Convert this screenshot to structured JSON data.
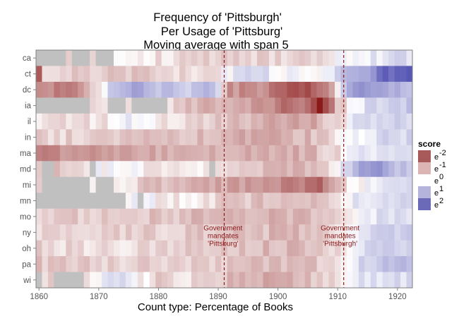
{
  "chart_data": {
    "type": "heatmap",
    "title_lines": [
      "Frequency of 'Pittsburgh'",
      "Per Usage of 'Pittsburg'",
      "Moving average with span 5"
    ],
    "xlabel": "Count type: Percentage of Books",
    "ylabel": "",
    "xlim": [
      1859.5,
      1922.5
    ],
    "x_ticks": [
      1860,
      1870,
      1880,
      1890,
      1900,
      1910,
      1920
    ],
    "x_tick_labels": [
      "1860",
      "1870",
      "1880",
      "1890",
      "1900",
      "1910",
      "1920"
    ],
    "rows": [
      "ca",
      "ct",
      "dc",
      "ia",
      "il",
      "in",
      "ma",
      "md",
      "mi",
      "mn",
      "mo",
      "ny",
      "oh",
      "pa",
      "wi"
    ],
    "years": [
      1860,
      1922
    ],
    "score_encoding": "natural log of ratio; -2 = dark red, 0 = white, 2 = dark blue; null = grey (no data)",
    "anchors": {
      "ca": [
        [
          1860,
          null
        ],
        [
          1864,
          null
        ],
        [
          1865,
          -0.3
        ],
        [
          1866,
          null
        ],
        [
          1869,
          -0.3
        ],
        [
          1870,
          null
        ],
        [
          1873,
          -0.1
        ],
        [
          1880,
          -0.2
        ],
        [
          1890,
          -0.3
        ],
        [
          1900,
          -0.3
        ],
        [
          1905,
          -0.4
        ],
        [
          1910,
          0.1
        ],
        [
          1915,
          0.2
        ],
        [
          1922,
          0.3
        ]
      ],
      "ct": [
        [
          1860,
          -1.3
        ],
        [
          1861,
          -0.3
        ],
        [
          1870,
          -0.4
        ],
        [
          1880,
          -0.3
        ],
        [
          1890,
          -0.1
        ],
        [
          1893,
          0.2
        ],
        [
          1896,
          0.4
        ],
        [
          1900,
          0.1
        ],
        [
          1905,
          -0.1
        ],
        [
          1910,
          0.3
        ],
        [
          1912,
          0.7
        ],
        [
          1915,
          1.0
        ],
        [
          1918,
          1.6
        ],
        [
          1922,
          1.7
        ]
      ],
      "dc": [
        [
          1860,
          -0.8
        ],
        [
          1865,
          -1.1
        ],
        [
          1868,
          -0.6
        ],
        [
          1870,
          -0.2
        ],
        [
          1872,
          0.5
        ],
        [
          1875,
          0.9
        ],
        [
          1880,
          0.6
        ],
        [
          1885,
          0.5
        ],
        [
          1888,
          0.8
        ],
        [
          1890,
          0.3
        ],
        [
          1892,
          -0.8
        ],
        [
          1895,
          -0.9
        ],
        [
          1898,
          -0.8
        ],
        [
          1900,
          -1.3
        ],
        [
          1904,
          -1.5
        ],
        [
          1908,
          -1.0
        ],
        [
          1910,
          -0.2
        ],
        [
          1912,
          0.9
        ],
        [
          1915,
          1.1
        ],
        [
          1918,
          0.8
        ],
        [
          1922,
          0.6
        ]
      ],
      "ia": [
        [
          1860,
          null
        ],
        [
          1865,
          null
        ],
        [
          1869,
          -0.2
        ],
        [
          1872,
          null
        ],
        [
          1874,
          null
        ],
        [
          1875,
          -0.3
        ],
        [
          1876,
          null
        ],
        [
          1880,
          null
        ],
        [
          1882,
          -0.3
        ],
        [
          1888,
          -0.6
        ],
        [
          1890,
          -0.3
        ],
        [
          1895,
          -0.7
        ],
        [
          1899,
          -0.8
        ],
        [
          1901,
          -1.2
        ],
        [
          1904,
          -1.1
        ],
        [
          1906,
          -1.6
        ],
        [
          1907,
          -2.0
        ],
        [
          1908,
          -1.4
        ],
        [
          1910,
          -0.5
        ],
        [
          1913,
          0.1
        ],
        [
          1916,
          0.4
        ],
        [
          1922,
          0.5
        ]
      ],
      "il": [
        [
          1860,
          -0.2
        ],
        [
          1870,
          -0.2
        ],
        [
          1875,
          0.1
        ],
        [
          1880,
          -0.2
        ],
        [
          1890,
          -0.4
        ],
        [
          1895,
          -0.5
        ],
        [
          1900,
          -0.7
        ],
        [
          1905,
          -0.7
        ],
        [
          1910,
          -0.3
        ],
        [
          1913,
          0.2
        ],
        [
          1918,
          0.4
        ],
        [
          1922,
          0.4
        ]
      ],
      "in": [
        [
          1860,
          -0.3
        ],
        [
          1870,
          -0.3
        ],
        [
          1880,
          -0.4
        ],
        [
          1890,
          -0.5
        ],
        [
          1895,
          -0.6
        ],
        [
          1900,
          -0.6
        ],
        [
          1905,
          -0.5
        ],
        [
          1910,
          -0.2
        ],
        [
          1913,
          0.1
        ],
        [
          1918,
          0.3
        ],
        [
          1922,
          0.3
        ]
      ],
      "ma": [
        [
          1860,
          -0.9
        ],
        [
          1870,
          -0.8
        ],
        [
          1875,
          -0.7
        ],
        [
          1880,
          -0.6
        ],
        [
          1890,
          -0.5
        ],
        [
          1900,
          -0.6
        ],
        [
          1905,
          -0.6
        ],
        [
          1910,
          -0.2
        ],
        [
          1913,
          0.1
        ],
        [
          1918,
          0.3
        ],
        [
          1922,
          0.2
        ]
      ],
      "md": [
        [
          1860,
          -0.5
        ],
        [
          1861,
          null
        ],
        [
          1863,
          -0.5
        ],
        [
          1866,
          -0.3
        ],
        [
          1869,
          null
        ],
        [
          1870,
          0.0
        ],
        [
          1875,
          0.0
        ],
        [
          1880,
          -0.2
        ],
        [
          1885,
          -0.1
        ],
        [
          1889,
          null
        ],
        [
          1890,
          -0.2
        ],
        [
          1895,
          -0.4
        ],
        [
          1900,
          -0.6
        ],
        [
          1905,
          -0.5
        ],
        [
          1910,
          -0.1
        ],
        [
          1913,
          0.8
        ],
        [
          1917,
          1.0
        ],
        [
          1920,
          0.6
        ],
        [
          1922,
          0.5
        ]
      ],
      "mi": [
        [
          1860,
          -0.2
        ],
        [
          1861,
          null
        ],
        [
          1869,
          -0.2
        ],
        [
          1870,
          null
        ],
        [
          1873,
          -0.1
        ],
        [
          1880,
          -0.5
        ],
        [
          1890,
          -0.6
        ],
        [
          1895,
          -0.8
        ],
        [
          1900,
          -0.9
        ],
        [
          1905,
          -1.1
        ],
        [
          1907,
          -1.3
        ],
        [
          1909,
          -0.7
        ],
        [
          1912,
          -0.1
        ],
        [
          1916,
          0.2
        ],
        [
          1922,
          0.3
        ]
      ],
      "mn": [
        [
          1860,
          null
        ],
        [
          1874,
          null
        ],
        [
          1875,
          0.1
        ],
        [
          1877,
          null
        ],
        [
          1878,
          0.2
        ],
        [
          1880,
          -0.2
        ],
        [
          1885,
          -0.1
        ],
        [
          1890,
          -0.3
        ],
        [
          1895,
          -0.4
        ],
        [
          1900,
          -0.5
        ],
        [
          1905,
          -0.5
        ],
        [
          1910,
          -0.1
        ],
        [
          1913,
          0.2
        ],
        [
          1918,
          0.3
        ],
        [
          1922,
          0.3
        ]
      ],
      "mo": [
        [
          1860,
          -0.3
        ],
        [
          1870,
          -0.4
        ],
        [
          1880,
          -0.4
        ],
        [
          1890,
          -0.5
        ],
        [
          1895,
          -0.6
        ],
        [
          1900,
          -0.6
        ],
        [
          1905,
          -0.5
        ],
        [
          1910,
          -0.2
        ],
        [
          1913,
          0.1
        ],
        [
          1918,
          0.3
        ],
        [
          1922,
          0.3
        ]
      ],
      "ny": [
        [
          1860,
          -0.2
        ],
        [
          1870,
          -0.3
        ],
        [
          1880,
          -0.3
        ],
        [
          1890,
          -0.4
        ],
        [
          1900,
          -0.5
        ],
        [
          1905,
          -0.5
        ],
        [
          1910,
          -0.1
        ],
        [
          1913,
          0.2
        ],
        [
          1918,
          0.4
        ],
        [
          1922,
          0.5
        ]
      ],
      "oh": [
        [
          1860,
          -0.3
        ],
        [
          1870,
          -0.2
        ],
        [
          1880,
          -0.3
        ],
        [
          1890,
          -0.4
        ],
        [
          1900,
          -0.5
        ],
        [
          1905,
          -0.5
        ],
        [
          1910,
          -0.2
        ],
        [
          1913,
          0.2
        ],
        [
          1918,
          0.4
        ],
        [
          1922,
          0.5
        ]
      ],
      "pa": [
        [
          1860,
          -0.4
        ],
        [
          1870,
          -0.3
        ],
        [
          1880,
          -0.3
        ],
        [
          1890,
          -0.4
        ],
        [
          1900,
          -0.5
        ],
        [
          1905,
          -0.5
        ],
        [
          1910,
          -0.1
        ],
        [
          1913,
          0.3
        ],
        [
          1918,
          0.6
        ],
        [
          1922,
          0.6
        ]
      ],
      "wi": [
        [
          1860,
          null
        ],
        [
          1861,
          -0.3
        ],
        [
          1863,
          null
        ],
        [
          1868,
          -0.1
        ],
        [
          1870,
          0.1
        ],
        [
          1874,
          0.3
        ],
        [
          1877,
          -0.1
        ],
        [
          1880,
          -0.3
        ],
        [
          1885,
          -0.2
        ],
        [
          1890,
          -0.4
        ],
        [
          1895,
          -0.6
        ],
        [
          1900,
          -0.6
        ],
        [
          1905,
          -0.5
        ],
        [
          1910,
          -0.2
        ],
        [
          1913,
          0.2
        ],
        [
          1918,
          0.3
        ],
        [
          1922,
          0.3
        ]
      ]
    },
    "vlines": [
      {
        "x": 1891,
        "style": "dashed",
        "color": "#8b1a1a"
      },
      {
        "x": 1911,
        "style": "dashed",
        "color": "#8b1a1a"
      }
    ],
    "annotations": [
      {
        "x": 1890.8,
        "lines": [
          "Government",
          "mandates",
          "'Pittsburg'"
        ],
        "row_anchor": "oh"
      },
      {
        "x": 1910.4,
        "lines": [
          "Government",
          "mandates",
          "'Pittsburgh'"
        ],
        "row_anchor": "oh"
      }
    ],
    "legend": {
      "title": "score",
      "placement": "right",
      "items": [
        {
          "base": "e",
          "exp": "-2",
          "color": "#a85a5a"
        },
        {
          "base": "e",
          "exp": "-1",
          "color": "#dcb4b4"
        },
        {
          "base": "e",
          "exp": "0",
          "color": "#ffffff"
        },
        {
          "base": "e",
          "exp": "1",
          "color": "#b4b4dc"
        },
        {
          "base": "e",
          "exp": "2",
          "color": "#6a6ab8"
        }
      ]
    },
    "grid": true,
    "colors": {
      "low": "#8b1a1a",
      "mid": "#ffffff",
      "high": "#4a4ab0",
      "na": "#c0c0c0",
      "panel_border": "#7f7f7f"
    }
  }
}
